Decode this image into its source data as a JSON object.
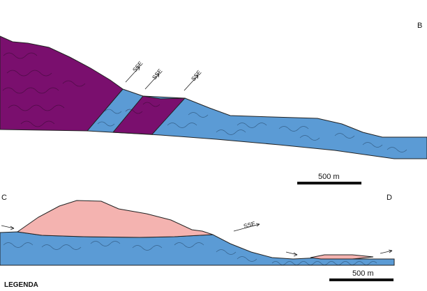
{
  "sections": [
    {
      "end_left": "",
      "end_right": "B"
    },
    {
      "end_left": "C",
      "end_right": "D"
    }
  ],
  "scale_bars": [
    {
      "label": "500 m"
    },
    {
      "label": "500 m"
    }
  ],
  "shear_labels": [
    "SSE",
    "SSE",
    "SSE",
    "SSE"
  ],
  "legend_heading": "LEGENDA",
  "colors": {
    "purple_unit": "#7a0f6e",
    "blue_unit": "#5b9bd5",
    "pink_unit": "#f4b3b0",
    "outline": "#222222"
  }
}
